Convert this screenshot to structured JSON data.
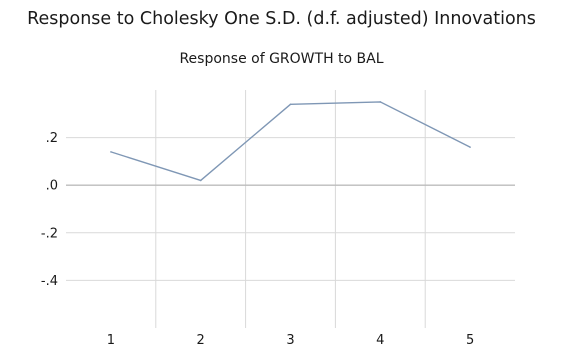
{
  "chart_data": {
    "type": "line",
    "title": "Response to Cholesky One S.D. (d.f. adjusted) Innovations",
    "subtitle": "Response of GROWTH to BAL",
    "x": [
      1,
      2,
      3,
      4,
      5
    ],
    "series": [
      {
        "values": [
          0.14,
          0.02,
          0.34,
          0.35,
          0.16
        ],
        "color": "#7f97b5"
      }
    ],
    "xticks": [
      "1",
      "2",
      "3",
      "4",
      "5"
    ],
    "yticks": [
      {
        "value": 0.2,
        "label": ".2"
      },
      {
        "value": 0.0,
        "label": ".0"
      },
      {
        "value": -0.2,
        "label": "-.2"
      },
      {
        "value": -0.4,
        "label": "-.4"
      }
    ],
    "ylim": [
      -0.6,
      0.4
    ],
    "grid": true,
    "colors": {
      "grid": "#d9d9d9",
      "zero_line": "#bcbcbc",
      "line": "#7f97b5"
    }
  }
}
